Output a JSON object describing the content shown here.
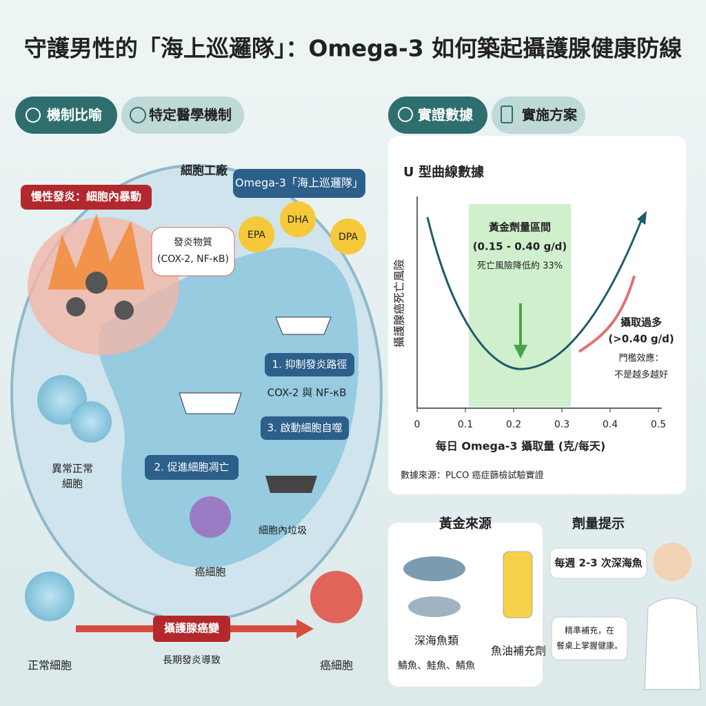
{
  "title": "守護男性的「海上巡邏隊」：Omega-3 如何築起攝護腺健康防線",
  "left": {
    "tabs": [
      "機制比喻",
      "特定醫學機制"
    ],
    "labels": {
      "factory": "細胞工廠",
      "patrol": "Omega-3「海上巡邏隊」",
      "riot": "慢性發炎：細胞內暴動",
      "inflam1": "發炎物質",
      "inflam2": "(COX-2, NF-κB)",
      "epa": "EPA",
      "dha": "DHA",
      "dpa": "DPA",
      "step1": "1. 抑制發炎路徑",
      "step1sub": "COX-2 與 NF-κB",
      "step3": "3. 啟動細胞自噬",
      "step2": "2. 促進細胞凋亡",
      "abnormal1": "異常正常",
      "abnormal2": "細胞",
      "cancer_in": "癌細胞",
      "garbage": "細胞內垃圾",
      "normal": "正常細胞",
      "prostate": "攝護腺癌變",
      "chronic": "長期發炎導致",
      "cancer_out": "癌細胞"
    }
  },
  "right": {
    "tabs": [
      "實證數據",
      "實施方案"
    ],
    "u_chart": {
      "title": "U 型曲線數據",
      "y_label": "攝護腺癌死亡風險",
      "x_label": "每日 Omega-3 攝取量 (克/每天)",
      "xlim": [
        0,
        0.5
      ],
      "xticks": [
        0,
        0.1,
        0.2,
        0.3,
        0.4,
        0.5
      ],
      "band": [
        "黃金劑量區間",
        "(0.15 - 0.40 g/d)",
        "死亡風險降低約 33%"
      ],
      "excess": [
        "攝取過多",
        "(>0.40 g/d)",
        "門檻效應：",
        "不是越多越好"
      ],
      "source": "數據來源：PLCO 癌症篩檢試驗實證"
    },
    "sources": {
      "title": "黃金來源",
      "fish": "深海魚類",
      "fish_sub": "鯖魚、鮭魚、鯖魚",
      "oil": "魚油補充劑"
    },
    "dose": {
      "title": "劑量提示",
      "bubble": "每週 2-3 次深海魚",
      "note1": "精準補充，在",
      "note2": "餐桌上掌握健康。"
    }
  }
}
